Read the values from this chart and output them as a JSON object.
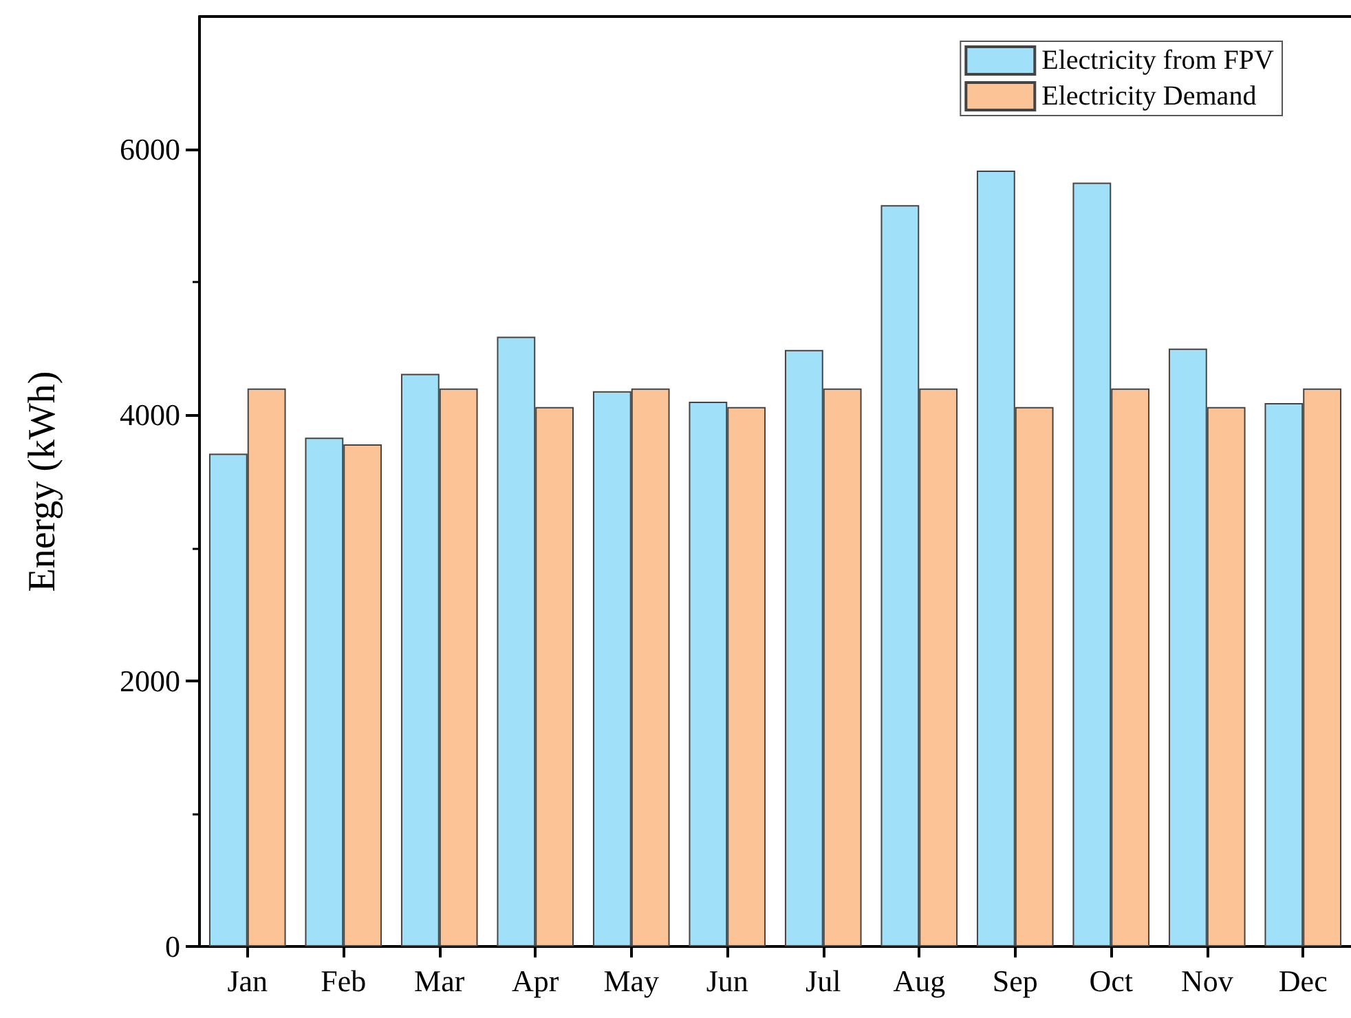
{
  "chart_data": {
    "type": "bar",
    "ylabel": "Energy (kWh)",
    "categories": [
      "Jan",
      "Feb",
      "Mar",
      "Apr",
      "May",
      "Jun",
      "Jul",
      "Aug",
      "Sep",
      "Oct",
      "Nov",
      "Dec"
    ],
    "series": [
      {
        "name": "Electricity from FPV",
        "color": "#a0e0f8",
        "values": [
          3710,
          3830,
          4310,
          4590,
          4180,
          4100,
          4490,
          5580,
          5840,
          5750,
          4500,
          4090
        ]
      },
      {
        "name": "Electricity Demand",
        "color": "#fbc396",
        "values": [
          4200,
          3780,
          4200,
          4060,
          4200,
          4060,
          4200,
          4200,
          4060,
          4200,
          4060,
          4200
        ]
      }
    ],
    "ylim": [
      0,
      7000
    ],
    "yticks": [
      0,
      2000,
      4000,
      6000
    ],
    "grid": false,
    "legend": "top right"
  }
}
